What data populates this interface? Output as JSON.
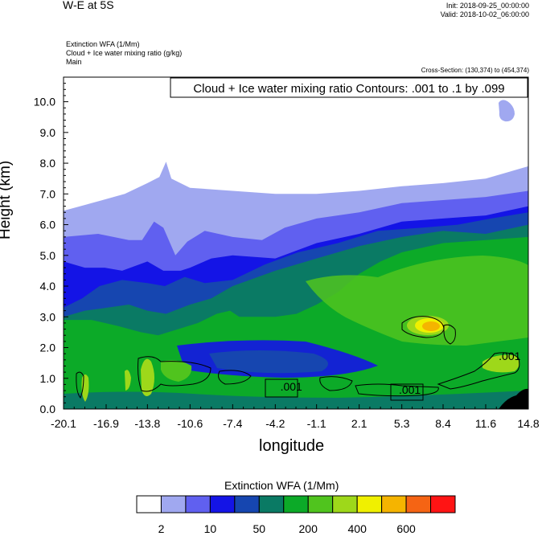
{
  "header": {
    "title": "W-E at 5S",
    "init": "Init: 2018-09-25_00:00:00",
    "valid": "Valid: 2018-10-02_06:00:00",
    "subtitle_1": "Extinction WFA   (1/Mm)",
    "subtitle_2": "Cloud + Ice water mixing ratio   (g/kg)",
    "subtitle_3": "Main",
    "cross_section": "Cross-Section: (130,374) to (454,374)"
  },
  "chart_data": {
    "type": "heatmap",
    "title": "W-E at 5S",
    "xlabel": "longitude",
    "ylabel": "Height (km)",
    "contour_label": "Cloud + Ice water mixing ratio Contours: .001 to .1 by .099",
    "xlim": [
      -20.1,
      14.8
    ],
    "ylim": [
      0.0,
      10.8
    ],
    "x_ticks": [
      "-20.1",
      "-16.9",
      "-13.8",
      "-10.6",
      "-7.4",
      "-4.2",
      "-1.1",
      "2.1",
      "5.3",
      "8.4",
      "11.6",
      "14.8"
    ],
    "y_ticks": [
      "0.0",
      "1.0",
      "2.0",
      "3.0",
      "4.0",
      "5.0",
      "6.0",
      "7.0",
      "8.0",
      "9.0",
      "10.0"
    ],
    "contour_inline_labels": [
      ".001",
      ".001",
      ".001"
    ],
    "colorbar": {
      "title": "Extinction WFA  (1/Mm)",
      "labels": [
        "2",
        "10",
        "50",
        "200",
        "400",
        "600"
      ],
      "colors": [
        "#ffffff",
        "#a0a8f0",
        "#6060f0",
        "#1414e6",
        "#1646b0",
        "#0a7a64",
        "#0caa28",
        "#50c41e",
        "#9ed81a",
        "#f0f000",
        "#f5b400",
        "#f56414",
        "#ff1414"
      ]
    },
    "layers": [
      {
        "level": 1,
        "color": "#a0a8f0",
        "top": [
          [
            -20.1,
            6.45
          ],
          [
            -18.0,
            6.7
          ],
          [
            -15.5,
            7.0
          ],
          [
            -13.8,
            7.35
          ],
          [
            -12.9,
            7.55
          ],
          [
            -12.4,
            8.05
          ],
          [
            -12.0,
            7.5
          ],
          [
            -10.6,
            7.2
          ],
          [
            -7.4,
            7.1
          ],
          [
            -4.2,
            7.0
          ],
          [
            -1.1,
            7.0
          ],
          [
            2.1,
            7.1
          ],
          [
            5.3,
            7.25
          ],
          [
            8.4,
            7.35
          ],
          [
            11.6,
            7.5
          ],
          [
            14.8,
            7.9
          ]
        ]
      },
      {
        "level": 2,
        "color": "#6060f0",
        "top": [
          [
            -20.1,
            5.6
          ],
          [
            -17.5,
            5.7
          ],
          [
            -15.2,
            5.5
          ],
          [
            -14.2,
            5.5
          ],
          [
            -13.3,
            6.1
          ],
          [
            -12.6,
            5.9
          ],
          [
            -11.7,
            5.0
          ],
          [
            -10.8,
            5.45
          ],
          [
            -9.5,
            5.8
          ],
          [
            -7.4,
            5.6
          ],
          [
            -5.2,
            5.5
          ],
          [
            -3.5,
            5.9
          ],
          [
            -1.1,
            6.2
          ],
          [
            2.1,
            6.4
          ],
          [
            5.3,
            6.7
          ],
          [
            8.4,
            6.8
          ],
          [
            11.6,
            6.9
          ],
          [
            14.8,
            7.1
          ]
        ]
      },
      {
        "level": 3,
        "color": "#1414e6",
        "top": [
          [
            -20.1,
            4.8
          ],
          [
            -18.5,
            4.6
          ],
          [
            -17.0,
            4.6
          ],
          [
            -15.7,
            4.5
          ],
          [
            -13.8,
            4.8
          ],
          [
            -12.6,
            4.5
          ],
          [
            -11.3,
            4.5
          ],
          [
            -10.6,
            4.6
          ],
          [
            -9.0,
            4.9
          ],
          [
            -7.4,
            5.0
          ],
          [
            -4.2,
            4.9
          ],
          [
            -1.1,
            5.4
          ],
          [
            2.1,
            5.7
          ],
          [
            5.3,
            6.1
          ],
          [
            8.4,
            6.2
          ],
          [
            11.6,
            6.3
          ],
          [
            14.8,
            6.6
          ]
        ]
      },
      {
        "level": 4,
        "color": "#1646b0",
        "top": [
          [
            -20.1,
            3.3
          ],
          [
            -18.7,
            3.6
          ],
          [
            -17.4,
            4.0
          ],
          [
            -15.7,
            4.2
          ],
          [
            -13.8,
            4.1
          ],
          [
            -12.5,
            4.0
          ],
          [
            -11.0,
            4.3
          ],
          [
            -9.5,
            4.1
          ],
          [
            -7.4,
            4.2
          ],
          [
            -5.0,
            4.7
          ],
          [
            -2.5,
            5.1
          ],
          [
            0.5,
            5.4
          ],
          [
            3.5,
            5.8
          ],
          [
            6.8,
            5.9
          ],
          [
            9.5,
            6.0
          ],
          [
            12.0,
            6.2
          ],
          [
            14.8,
            6.4
          ]
        ]
      },
      {
        "level": 5,
        "color": "#0a7a64",
        "top": [
          [
            -20.1,
            3.0
          ],
          [
            -18.5,
            3.2
          ],
          [
            -16.8,
            3.3
          ],
          [
            -15.2,
            3.4
          ],
          [
            -13.8,
            3.2
          ],
          [
            -12.4,
            3.1
          ],
          [
            -10.6,
            3.4
          ],
          [
            -9.0,
            3.6
          ],
          [
            -7.4,
            4.0
          ],
          [
            -4.2,
            4.5
          ],
          [
            -1.1,
            4.9
          ],
          [
            2.1,
            5.3
          ],
          [
            5.3,
            5.6
          ],
          [
            8.4,
            5.8
          ],
          [
            11.6,
            5.7
          ],
          [
            14.8,
            6.0
          ]
        ]
      },
      {
        "level": 6,
        "color": "#0caa28",
        "top": [
          [
            -20.1,
            2.9
          ],
          [
            -18.0,
            2.9
          ],
          [
            -16.0,
            2.7
          ],
          [
            -14.3,
            2.5
          ],
          [
            -13.0,
            2.4
          ],
          [
            -11.5,
            2.6
          ],
          [
            -10.0,
            2.8
          ],
          [
            -8.6,
            3.1
          ],
          [
            -7.6,
            3.2
          ],
          [
            -6.9,
            3.0
          ],
          [
            -6.0,
            3.0
          ],
          [
            -4.2,
            3.0
          ],
          [
            -2.6,
            3.1
          ],
          [
            -1.1,
            3.4
          ],
          [
            0.5,
            3.8
          ],
          [
            2.1,
            4.4
          ],
          [
            3.7,
            4.8
          ],
          [
            5.3,
            5.1
          ],
          [
            8.4,
            5.4
          ],
          [
            11.6,
            5.5
          ],
          [
            14.8,
            5.6
          ]
        ]
      }
    ]
  }
}
